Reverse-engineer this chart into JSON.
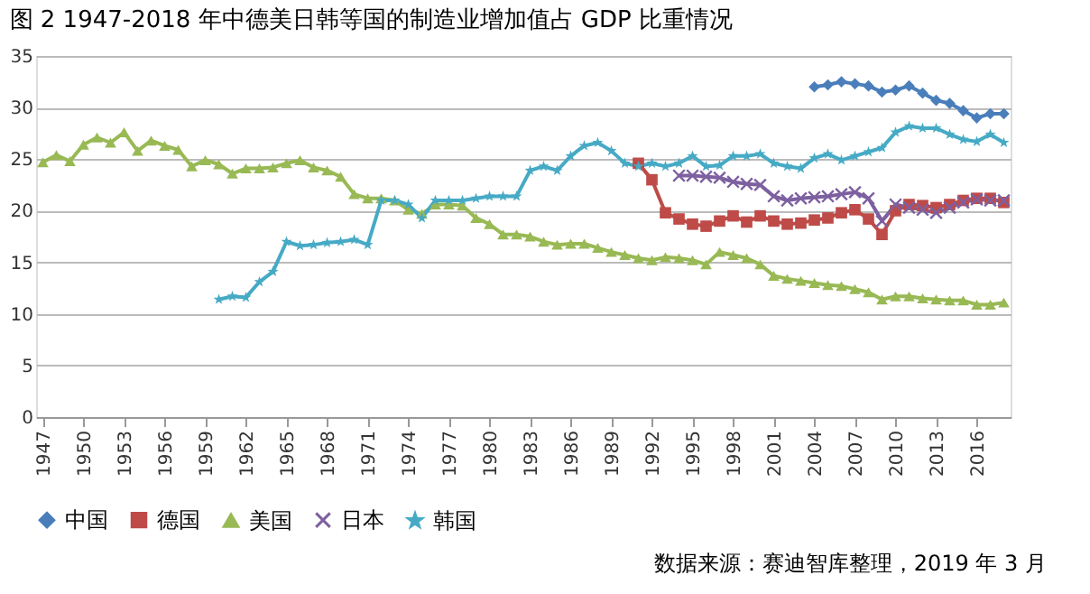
{
  "chart_data": {
    "type": "line",
    "title": "图 2 1947-2018 年中德美日韩等国的制造业增加值占 GDP 比重情况",
    "categories": [
      "1947",
      null,
      null,
      "1950",
      null,
      null,
      "1953",
      null,
      null,
      "1956",
      null,
      null,
      "1959",
      null,
      null,
      "1962",
      null,
      null,
      "1965",
      null,
      null,
      "1968",
      null,
      null,
      "1971",
      null,
      null,
      "1974",
      null,
      null,
      "1977",
      null,
      null,
      "1980",
      null,
      null,
      "1983",
      null,
      null,
      "1986",
      null,
      null,
      "1989",
      null,
      null,
      "1992",
      null,
      null,
      "1995",
      null,
      null,
      "1998",
      null,
      null,
      "2001",
      null,
      null,
      "2004",
      null,
      null,
      "2007",
      null,
      null,
      "2010",
      null,
      null,
      "2013",
      null,
      null,
      "2016",
      null,
      null
    ],
    "series": [
      {
        "name": "中国",
        "color": "#4a7ebb",
        "marker": "diamond",
        "values": [
          null,
          null,
          null,
          null,
          null,
          null,
          null,
          null,
          null,
          null,
          null,
          null,
          null,
          null,
          null,
          null,
          null,
          null,
          null,
          null,
          null,
          null,
          null,
          null,
          null,
          null,
          null,
          null,
          null,
          null,
          null,
          null,
          null,
          null,
          null,
          null,
          null,
          null,
          null,
          null,
          null,
          null,
          null,
          null,
          null,
          null,
          null,
          null,
          null,
          null,
          null,
          null,
          null,
          null,
          null,
          null,
          null,
          32,
          32.2,
          32.5,
          32.3,
          32.1,
          31.5,
          31.7,
          32.1,
          31.4,
          30.7,
          30.4,
          29.7,
          29,
          29.4,
          29.4
        ]
      },
      {
        "name": "德国",
        "color": "#be4b48",
        "marker": "square",
        "values": [
          null,
          null,
          null,
          null,
          null,
          null,
          null,
          null,
          null,
          null,
          null,
          null,
          null,
          null,
          null,
          null,
          null,
          null,
          null,
          null,
          null,
          null,
          null,
          null,
          null,
          null,
          null,
          null,
          null,
          null,
          null,
          null,
          null,
          null,
          null,
          null,
          null,
          null,
          null,
          null,
          null,
          null,
          null,
          null,
          24.6,
          23,
          19.8,
          19.2,
          18.7,
          18.5,
          19,
          19.5,
          18.9,
          19.5,
          19,
          18.7,
          18.8,
          19.1,
          19.3,
          19.8,
          20.1,
          19.2,
          17.7,
          20,
          20.6,
          20.5,
          20.3,
          20.6,
          21,
          21.2,
          21.2,
          20.8
        ]
      },
      {
        "name": "美国",
        "color": "#98b954",
        "marker": "triangle",
        "values": [
          24.7,
          25.4,
          24.8,
          26.4,
          27.1,
          26.6,
          27.6,
          25.8,
          26.8,
          26.3,
          25.9,
          24.3,
          24.9,
          24.5,
          23.6,
          24.1,
          24.1,
          24.2,
          24.6,
          24.9,
          24.2,
          23.9,
          23.3,
          21.6,
          21.2,
          21.2,
          21,
          20.1,
          19.7,
          20.6,
          20.6,
          20.5,
          19.3,
          18.7,
          17.7,
          17.7,
          17.5,
          17,
          16.7,
          16.8,
          16.8,
          16.4,
          16,
          15.7,
          15.4,
          15.2,
          15.5,
          15.4,
          15.2,
          14.8,
          16,
          15.7,
          15.4,
          14.8,
          13.7,
          13.4,
          13.2,
          13,
          12.8,
          12.7,
          12.4,
          12.1,
          11.4,
          11.7,
          11.7,
          11.5,
          11.4,
          11.3,
          11.3,
          10.9,
          10.9,
          11.1
        ]
      },
      {
        "name": "日本",
        "color": "#7d60a0",
        "marker": "cross",
        "values": [
          null,
          null,
          null,
          null,
          null,
          null,
          null,
          null,
          null,
          null,
          null,
          null,
          null,
          null,
          null,
          null,
          null,
          null,
          null,
          null,
          null,
          null,
          null,
          null,
          null,
          null,
          null,
          null,
          null,
          null,
          null,
          null,
          null,
          null,
          null,
          null,
          null,
          null,
          null,
          null,
          null,
          null,
          null,
          null,
          null,
          null,
          null,
          23.4,
          23.4,
          23.3,
          23.2,
          22.8,
          22.6,
          22.5,
          21.4,
          21,
          21.2,
          21.3,
          21.4,
          21.6,
          21.8,
          21.2,
          19,
          20.6,
          20.3,
          20.1,
          19.8,
          20.3,
          20.8,
          21.1,
          21,
          21
        ]
      },
      {
        "name": "韩国",
        "color": "#46aac5",
        "marker": "star",
        "values": [
          null,
          null,
          null,
          null,
          null,
          null,
          null,
          null,
          null,
          null,
          null,
          null,
          null,
          11.4,
          11.7,
          11.6,
          13.1,
          14.1,
          17,
          16.6,
          16.7,
          16.9,
          17,
          17.2,
          16.7,
          21,
          21,
          20.6,
          19.3,
          21,
          21,
          21,
          21.2,
          21.4,
          21.4,
          21.4,
          23.9,
          24.3,
          23.9,
          25.3,
          26.3,
          26.6,
          25.8,
          24.6,
          24.3,
          24.6,
          24.3,
          24.6,
          25.3,
          24.3,
          24.4,
          25.3,
          25.3,
          25.5,
          24.6,
          24.3,
          24.1,
          25.1,
          25.5,
          24.9,
          25.3,
          25.7,
          26.1,
          27.6,
          28.2,
          28,
          28,
          27.4,
          26.9,
          26.7,
          27.4,
          26.6
        ]
      }
    ],
    "ylim": [
      0,
      35
    ],
    "yticks": [
      0,
      5,
      10,
      15,
      20,
      25,
      30,
      35
    ],
    "grid": "y",
    "legend": "bottom",
    "annotations": [
      "数据来源：赛迪智库整理，2019 年 3 月"
    ]
  }
}
